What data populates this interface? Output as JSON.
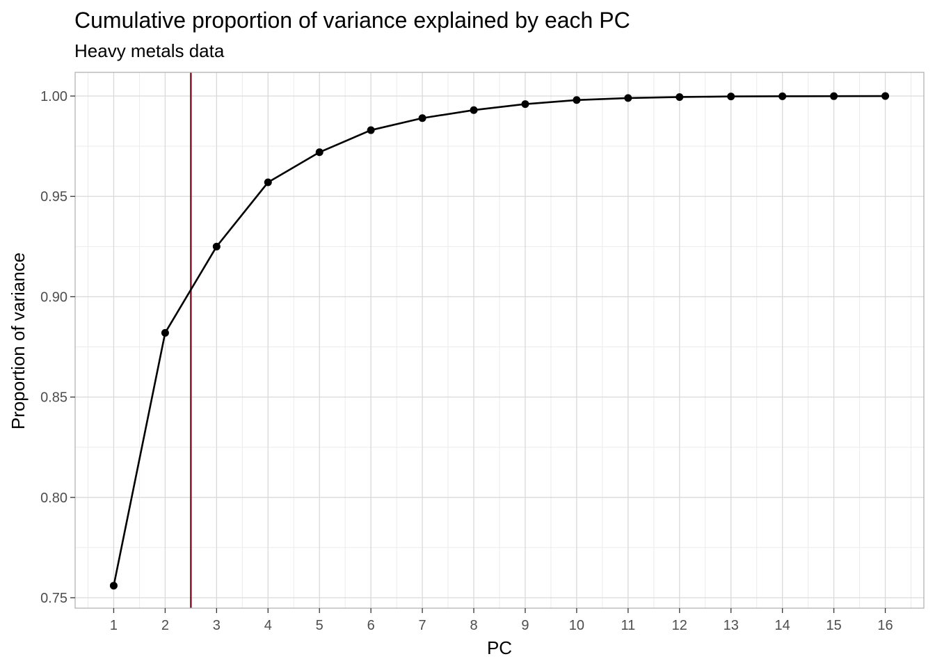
{
  "chart_data": {
    "type": "line",
    "title": "Cumulative proportion of variance explained by each PC",
    "subtitle": "Heavy metals data",
    "xlabel": "PC",
    "ylabel": "Proportion of variance",
    "x": [
      1,
      2,
      3,
      4,
      5,
      6,
      7,
      8,
      9,
      10,
      11,
      12,
      13,
      14,
      15,
      16
    ],
    "x_tick_labels": [
      "1",
      "2",
      "3",
      "4",
      "5",
      "6",
      "7",
      "8",
      "9",
      "10",
      "11",
      "12",
      "13",
      "14",
      "15",
      "16"
    ],
    "series": [
      {
        "values": [
          0.756,
          0.882,
          0.925,
          0.957,
          0.972,
          0.983,
          0.989,
          0.993,
          0.996,
          0.998,
          0.999,
          0.9995,
          0.9998,
          0.9999,
          0.99995,
          1.0
        ],
        "color": "#000000",
        "markers": true
      }
    ],
    "xlim": [
      0.25,
      16.75
    ],
    "ylim": [
      0.7448,
      1.0118
    ],
    "y_ticks": [
      0.75,
      0.8,
      0.85,
      0.9,
      0.95,
      1.0
    ],
    "y_tick_labels": [
      "0.75",
      "0.80",
      "0.85",
      "0.90",
      "0.95",
      "1.00"
    ],
    "reference_line": {
      "orientation": "vertical",
      "x": 2.5,
      "color": "#8b1a2b"
    },
    "grid": true,
    "legend": "none",
    "theme": {
      "grid_major_color": "#d9d9d9",
      "grid_minor_color": "#ebebeb",
      "panel_border_color": "#b3b3b3"
    }
  }
}
